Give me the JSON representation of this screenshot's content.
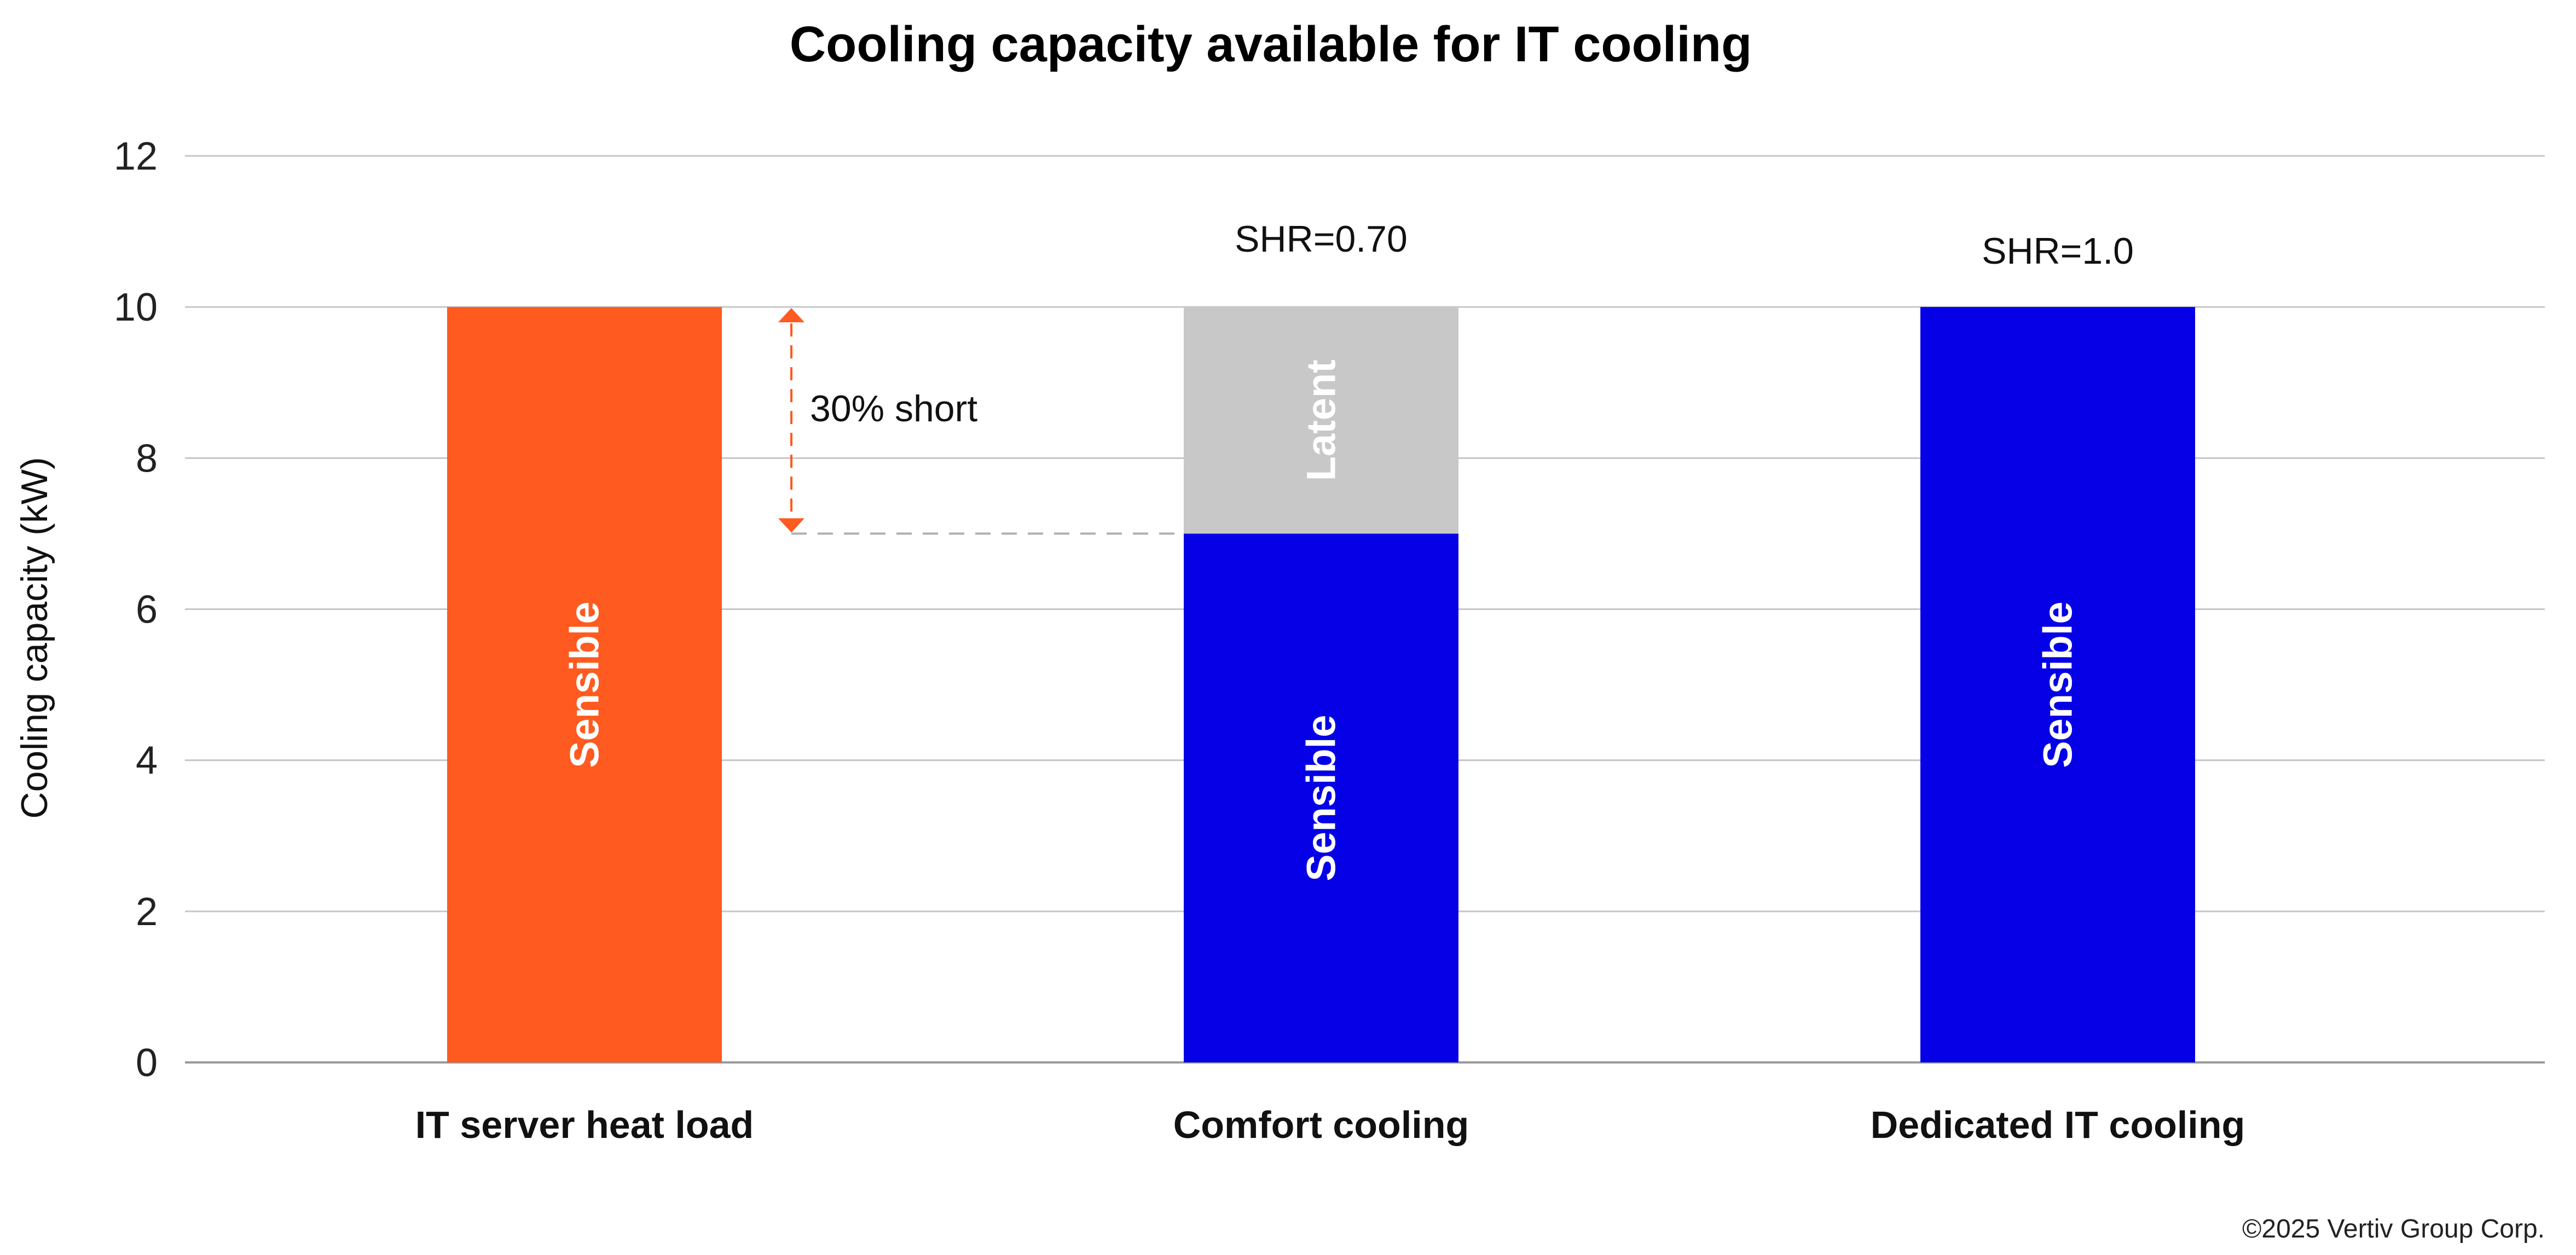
{
  "chart_data": {
    "type": "bar",
    "stacked": true,
    "title": "Cooling capacity available for IT cooling",
    "ylabel": "Cooling capacity (kW)",
    "ylim": [
      0,
      12
    ],
    "yticks": [
      0,
      2,
      4,
      6,
      8,
      10,
      12
    ],
    "grid": true,
    "categories": [
      "IT server heat load",
      "Comfort cooling",
      "Dedicated IT cooling"
    ],
    "bars": [
      {
        "category": "IT server heat load",
        "top_label": "",
        "segments": [
          {
            "label": "Sensible",
            "value": 10,
            "color": "#ff5a1f"
          }
        ]
      },
      {
        "category": "Comfort cooling",
        "top_label": "SHR=0.70",
        "segments": [
          {
            "label": "Sensible",
            "value": 7,
            "color": "#0500e6"
          },
          {
            "label": "Latent",
            "value": 3,
            "color": "#c8c8c8"
          }
        ]
      },
      {
        "category": "Dedicated IT cooling",
        "top_label": "SHR=1.0",
        "segments": [
          {
            "label": "Sensible",
            "value": 10,
            "color": "#0500e6"
          }
        ]
      }
    ],
    "annotation": {
      "text": "30% short",
      "from_value": 7,
      "to_value": 10,
      "color": "#ff5a1f"
    },
    "footer": "©2025 Vertiv Group Corp."
  }
}
